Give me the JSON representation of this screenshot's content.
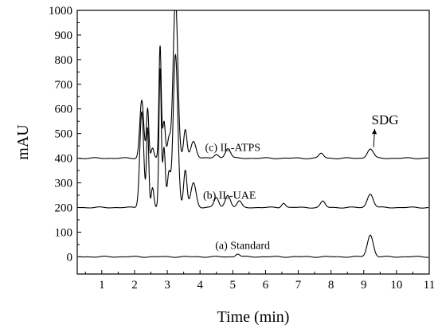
{
  "chart_data": {
    "type": "line",
    "title": "",
    "xlabel": "Time (min)",
    "ylabel": "mAU",
    "xlim": [
      0.25,
      11
    ],
    "ylim": [
      -70,
      1000
    ],
    "x_ticks": [
      1,
      2,
      3,
      4,
      5,
      6,
      7,
      8,
      9,
      10,
      11
    ],
    "y_ticks": [
      0,
      100,
      200,
      300,
      400,
      500,
      600,
      700,
      800,
      900,
      1000
    ],
    "grid": false,
    "legend": "none",
    "series": [
      {
        "name": "(a) Standard",
        "color": "#000000",
        "baseline": 0,
        "peaks": [
          [
            5.15,
            12,
            0.06
          ],
          [
            9.2,
            88,
            0.09
          ]
        ]
      },
      {
        "name": "(b) IL-UAE",
        "color": "#000000",
        "baseline": 200,
        "peaks": [
          [
            2.22,
            390,
            0.06
          ],
          [
            2.4,
            320,
            0.035
          ],
          [
            2.55,
            80,
            0.04
          ],
          [
            2.78,
            560,
            0.035
          ],
          [
            2.9,
            240,
            0.04
          ],
          [
            3.05,
            140,
            0.05
          ],
          [
            3.25,
            620,
            0.07
          ],
          [
            3.55,
            150,
            0.05
          ],
          [
            3.8,
            100,
            0.08
          ],
          [
            4.5,
            40,
            0.07
          ],
          [
            4.85,
            50,
            0.08
          ],
          [
            5.2,
            25,
            0.07
          ],
          [
            6.55,
            18,
            0.06
          ],
          [
            7.75,
            25,
            0.07
          ],
          [
            9.2,
            55,
            0.09
          ]
        ]
      },
      {
        "name": "(c) IL-ATPS",
        "color": "#000000",
        "baseline": 400,
        "peaks": [
          [
            2.22,
            235,
            0.06
          ],
          [
            2.4,
            200,
            0.035
          ],
          [
            2.55,
            40,
            0.04
          ],
          [
            2.78,
            455,
            0.035
          ],
          [
            2.9,
            150,
            0.04
          ],
          [
            3.05,
            80,
            0.05
          ],
          [
            3.25,
            650,
            0.07
          ],
          [
            3.55,
            115,
            0.05
          ],
          [
            3.8,
            70,
            0.08
          ],
          [
            4.5,
            15,
            0.07
          ],
          [
            4.85,
            40,
            0.08
          ],
          [
            7.7,
            20,
            0.07
          ],
          [
            9.2,
            38,
            0.09
          ]
        ]
      }
    ],
    "annotations": [
      {
        "text": "(c) IL-ATPS",
        "x": 5.0,
        "y": 430
      },
      {
        "text": "(b) IL-UAE",
        "x": 4.9,
        "y": 236
      },
      {
        "text": "(a) Standard",
        "x": 5.3,
        "y": 32
      },
      {
        "text": "SDG",
        "x": 9.65,
        "y": 538,
        "arrow_to": [
          9.3,
          445
        ]
      }
    ]
  }
}
